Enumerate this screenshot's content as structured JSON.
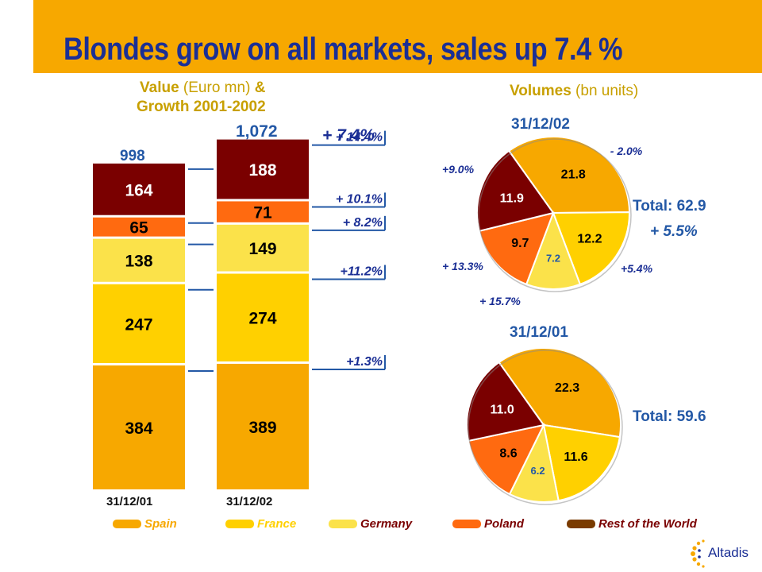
{
  "slide": {
    "title": "Blondes grow on all markets, sales up 7.4 %"
  },
  "colors": {
    "spain": "#f7a800",
    "france": "#ffd000",
    "germany": "#fbe24a",
    "poland": "#ff6a10",
    "rest_of_world": "#7a0000",
    "header_bar": "#f7a800",
    "accent_blue": "#2358a6",
    "title_blue": "#1b2f95"
  },
  "value_header": {
    "bold1": "Value",
    "light1": " (Euro mn) ",
    "amp": "&",
    "line2": "Growth 2001-2002"
  },
  "volumes_header": {
    "bold": "Volumes",
    "light": " (bn units)"
  },
  "total_growth": "+ 7.4%",
  "legend": [
    "Spain",
    "France",
    "Germany",
    "Poland",
    "Rest of the World"
  ],
  "chart_data": [
    {
      "type": "bar",
      "stacked": true,
      "categories": [
        "31/12/01",
        "31/12/02"
      ],
      "totals": [
        "998",
        "1,072"
      ],
      "series": [
        {
          "name": "Spain",
          "values": [
            384,
            389
          ],
          "growth": "+1.3%"
        },
        {
          "name": "France",
          "values": [
            247,
            274
          ],
          "growth": "+11.2%"
        },
        {
          "name": "Germany",
          "values": [
            138,
            149
          ],
          "growth": "+ 8.2%"
        },
        {
          "name": "Poland",
          "values": [
            65,
            71
          ],
          "growth": "+ 10.1%"
        },
        {
          "name": "Rest of the World",
          "values": [
            164,
            188
          ],
          "growth": "+ 14.4%"
        }
      ]
    },
    {
      "type": "pie",
      "title": "31/12/02",
      "total": "Total: 62.9",
      "total_growth": "+ 5.5%",
      "slices": [
        {
          "name": "Spain",
          "value": 21.8,
          "growth": "- 2.0%"
        },
        {
          "name": "France",
          "value": 12.2,
          "growth": "+5.4%"
        },
        {
          "name": "Germany",
          "value": 7.2,
          "growth": "+ 15.7%"
        },
        {
          "name": "Poland",
          "value": 9.7,
          "growth": "+ 13.3%"
        },
        {
          "name": "Rest of the World",
          "value": 11.9,
          "growth": "+9.0%"
        }
      ]
    },
    {
      "type": "pie",
      "title": "31/12/01",
      "total": "Total: 59.6",
      "slices": [
        {
          "name": "Spain",
          "value": 22.3
        },
        {
          "name": "France",
          "value": 11.6
        },
        {
          "name": "Germany",
          "value": 6.2
        },
        {
          "name": "Poland",
          "value": 8.6
        },
        {
          "name": "Rest of the World",
          "value": 11.0
        }
      ]
    }
  ],
  "logo": {
    "text": "Altadis"
  }
}
